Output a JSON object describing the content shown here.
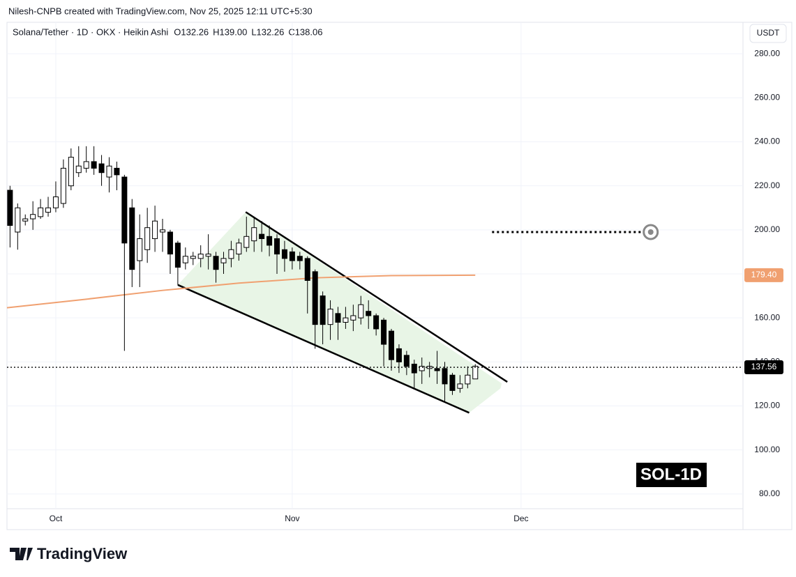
{
  "chart_data": {
    "type": "candlestick",
    "header": "Nilesh-CNPB created with TradingView.com, Nov 25, 2025 12:11 UTC+5:30",
    "title": "Solana/Tether · 1D · OKX · Heikin Ashi",
    "ohlc_header": [
      {
        "label": "O",
        "value": "132.26"
      },
      {
        "label": "H",
        "value": "139.00"
      },
      {
        "label": "L",
        "value": "132.26"
      },
      {
        "label": "C",
        "value": "138.06"
      }
    ],
    "currency": "USDT",
    "watermark": "SOL-1D",
    "logo": "TradingView",
    "up_color": "#ffffff",
    "down_color": "#000000",
    "open": [
      218,
      199,
      204,
      205,
      206,
      208,
      210,
      212,
      220,
      226,
      228,
      231,
      230,
      224,
      228,
      224,
      210,
      186,
      191,
      196,
      199,
      199,
      194,
      185,
      187,
      187,
      188,
      188,
      185,
      187,
      189,
      192,
      195,
      198,
      197,
      196,
      191,
      190,
      188,
      187,
      181,
      170,
      157,
      162,
      158,
      159,
      160,
      163,
      161,
      159,
      154,
      146,
      143,
      139,
      136,
      137,
      137,
      137,
      134,
      128,
      130,
      132.26
    ],
    "high": [
      220,
      212,
      207,
      213,
      214,
      215,
      222,
      232,
      237,
      238,
      238,
      238,
      234,
      233,
      231,
      225,
      214,
      207,
      210,
      211,
      205,
      200,
      195,
      192,
      190,
      193,
      198,
      190,
      190,
      195,
      196,
      206,
      206,
      204,
      202,
      198,
      195,
      192,
      190,
      188,
      182,
      172,
      168,
      165,
      165,
      166,
      170,
      168,
      162,
      160,
      155,
      148,
      145,
      141,
      142,
      140,
      145,
      140,
      135,
      134,
      138,
      139
    ],
    "low": [
      192,
      191,
      202,
      200,
      205,
      206,
      208,
      210,
      218,
      224,
      226,
      225,
      220,
      217,
      218,
      145,
      174,
      174,
      185,
      190,
      190,
      180,
      175,
      182,
      184,
      183,
      182,
      176,
      180,
      183,
      186,
      190,
      190,
      190,
      188,
      180,
      181,
      182,
      182,
      162,
      146,
      148,
      150,
      150,
      155,
      154,
      157,
      155,
      152,
      138,
      136,
      135,
      134,
      128,
      130,
      133,
      130,
      122,
      125,
      126,
      128,
      132.26
    ],
    "close": [
      202,
      210,
      205,
      207,
      210,
      210,
      215,
      228,
      233,
      229,
      231,
      228,
      226,
      229,
      225,
      194,
      182,
      196,
      201,
      204,
      200,
      189,
      183,
      188,
      188,
      189,
      189,
      182,
      187,
      191,
      194,
      197,
      201,
      196,
      193,
      189,
      187,
      186,
      186,
      177,
      157,
      157,
      164,
      158,
      160,
      161,
      166,
      161,
      155,
      148,
      141,
      140,
      138,
      135,
      138,
      138,
      136,
      130,
      127,
      130,
      134,
      138.06
    ],
    "xlim": [
      -0.4,
      96.1
    ],
    "xticks": [
      {
        "value": 6,
        "label": "Oct"
      },
      {
        "value": 37,
        "label": "Nov"
      },
      {
        "value": 67,
        "label": "Dec"
      }
    ],
    "ylim": [
      73.3,
      294.3
    ],
    "yticks": [
      {
        "value": 80,
        "label": "80.00"
      },
      {
        "value": 100,
        "label": "100.00"
      },
      {
        "value": 120,
        "label": "120.00"
      },
      {
        "value": 140,
        "label": "140.00"
      },
      {
        "value": 160,
        "label": "160.00"
      },
      {
        "value": 180,
        "label": "180.00"
      },
      {
        "value": 200,
        "label": "200.00"
      },
      {
        "value": 220,
        "label": "220.00"
      },
      {
        "value": 240,
        "label": "240.00"
      },
      {
        "value": 260,
        "label": "260.00"
      },
      {
        "value": 280,
        "label": "280.00"
      }
    ],
    "grid": true,
    "moving_average": {
      "color": "#f0a070",
      "x": [
        -0.4,
        10,
        20,
        30,
        40,
        50,
        61
      ],
      "values": [
        164.6,
        168.5,
        172.5,
        175.8,
        178.2,
        179.2,
        179.4
      ],
      "value_labels": [
        null,
        null,
        null,
        null,
        null,
        null,
        "179.40"
      ]
    },
    "last_price": {
      "value": 137.56,
      "label": "137.56"
    },
    "channel": {
      "upper": {
        "x": [
          30.9,
          65.2
        ],
        "values": [
          208.1,
          130.9
        ]
      },
      "lower": {
        "x": [
          22.0,
          60.2
        ],
        "values": [
          175.0,
          116.9
        ]
      },
      "fill": "#e8f5e6"
    },
    "target": {
      "x": [
        63.2,
        84.0
      ],
      "values": [
        199,
        199
      ]
    }
  }
}
